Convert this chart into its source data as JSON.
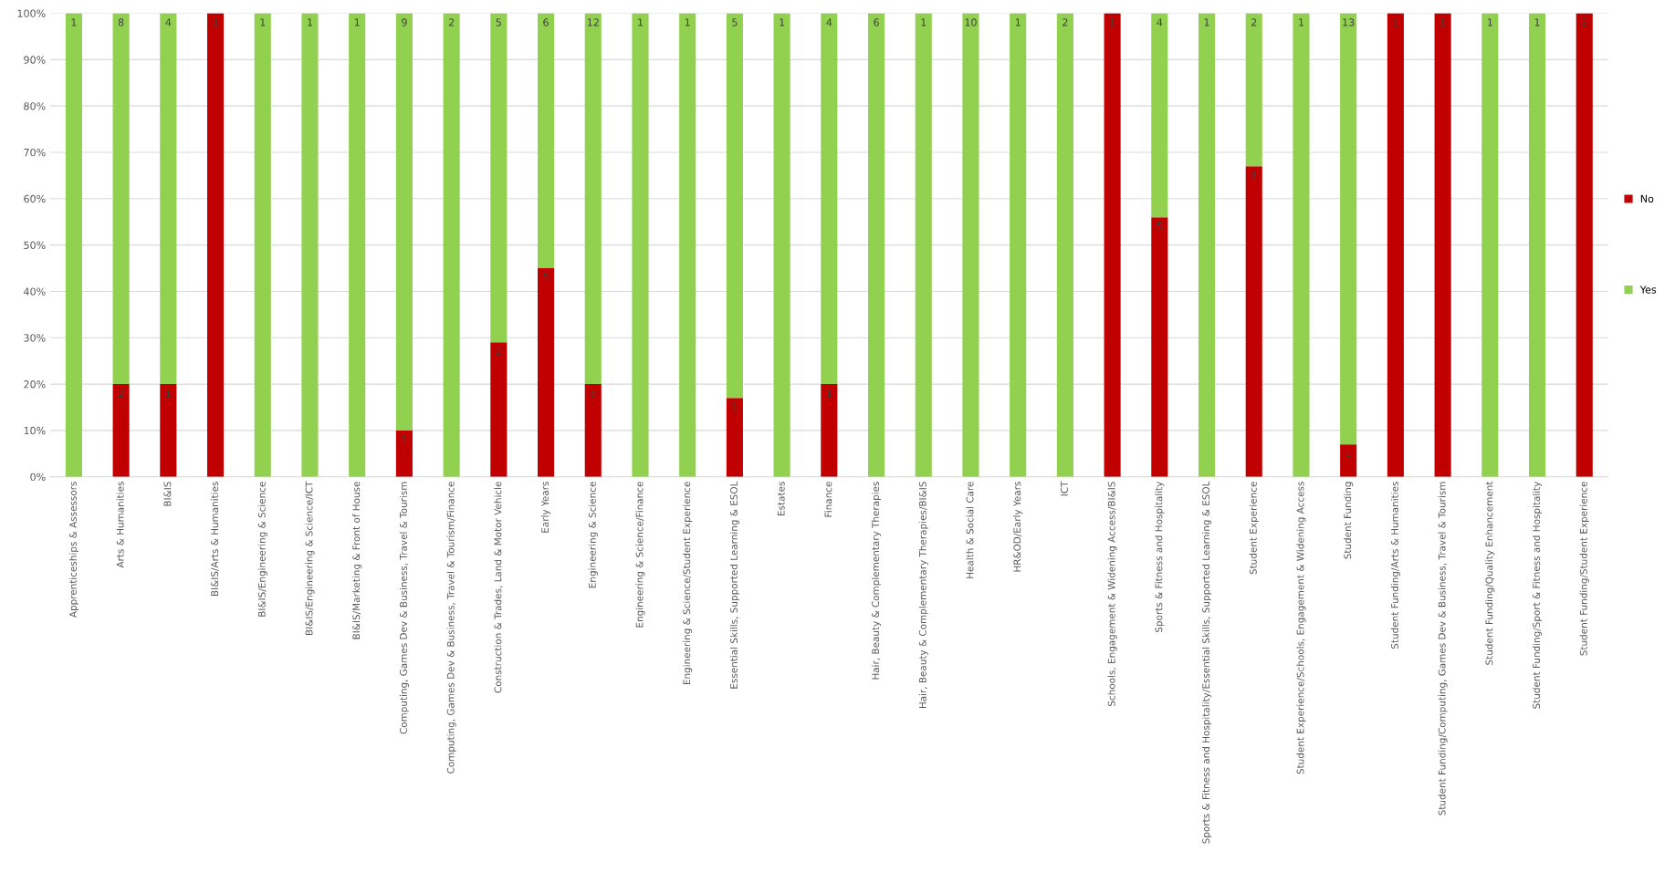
{
  "chart_data": {
    "type": "bar",
    "stacked": true,
    "categories": [
      "Apprenticeships & Assessors",
      "Arts & Humanities",
      "BI&IS",
      "BI&IS/Arts & Humanities",
      "BI&IS/Engineering & Science",
      "BI&IS/Engineering & Science/ICT",
      "BI&IS/Marketing & Front of House",
      "Computing, Games Dev & Business, Travel & Tourism",
      "Computing, Games Dev & Business, Travel & Tourism/Finance",
      "Construction & Trades, Land & Motor Vehicle",
      "Early Years",
      "Engineering & Science",
      "Engineering & Science/Finance",
      "Engineering & Science/Student Experience",
      "Essential Skills, Supported Learning & ESOL",
      "Estates",
      "Finance",
      "Hair, Beauty & Complementary Therapies",
      "Hair, Beauty & Complementary Therapies/BI&IS",
      "Health & Social Care",
      "HR&OD/Early Years",
      "ICT",
      "Schools, Engagement & Widening Access/BI&IS",
      "Sports & Fitness and Hospitality",
      "Sports & Fitness and Hospitality/Essential Skills, Supported Learning & ESOL",
      "Student Experience",
      "Student Experience/Schools, Engagement & Widening Access",
      "Student Funding",
      "Student Funding/Arts & Humanities",
      "Student Funding/Computing, Games Dev & Business, Travel & Tourism",
      "Student Funding/Quality Enhancement",
      "Student Funding/Sport & Fitness and Hospitality",
      "Student Funding/Student Experience"
    ],
    "series": [
      {
        "name": "No",
        "color": "#c00000",
        "values": [
          0,
          20,
          20,
          100,
          0,
          0,
          0,
          10,
          0,
          29,
          45,
          20,
          0,
          0,
          17,
          0,
          20,
          0,
          0,
          0,
          0,
          0,
          100,
          56,
          0,
          67,
          0,
          7,
          100,
          100,
          0,
          0,
          100
        ]
      },
      {
        "name": "Yes",
        "color": "#92d050",
        "values": [
          100,
          80,
          80,
          0,
          100,
          100,
          100,
          90,
          100,
          71,
          55,
          80,
          100,
          100,
          83,
          100,
          80,
          100,
          100,
          100,
          100,
          100,
          0,
          44,
          100,
          33,
          100,
          93,
          0,
          0,
          100,
          100,
          0
        ]
      }
    ],
    "ylim": [
      0,
      100
    ],
    "yticks": [
      {
        "value": 0,
        "label": "0%"
      },
      {
        "value": 10,
        "label": "10%"
      },
      {
        "value": 20,
        "label": "20%"
      },
      {
        "value": 30,
        "label": "30%"
      },
      {
        "value": 40,
        "label": "40%"
      },
      {
        "value": 50,
        "label": "50%"
      },
      {
        "value": 60,
        "label": "60%"
      },
      {
        "value": 70,
        "label": "70%"
      },
      {
        "value": 80,
        "label": "80%"
      },
      {
        "value": 90,
        "label": "90%"
      },
      {
        "value": 100,
        "label": "100%"
      }
    ],
    "grid": "y",
    "legend": "right",
    "annotations": [
      {
        "text": "1",
        "x": "Apprenticeships & Assessors",
        "y": 100
      },
      {
        "text": "2",
        "x": "Arts & Humanities",
        "y": 20
      },
      {
        "text": "8",
        "x": "Arts & Humanities",
        "y": 100
      },
      {
        "text": "1",
        "x": "BI&IS",
        "y": 20
      },
      {
        "text": "4",
        "x": "BI&IS",
        "y": 100
      },
      {
        "text": "1",
        "x": "BI&IS/Arts & Humanities",
        "y": 100
      },
      {
        "text": "1",
        "x": "BI&IS/Engineering & Science",
        "y": 100
      },
      {
        "text": "1",
        "x": "BI&IS/Engineering & Science/ICT",
        "y": 100
      },
      {
        "text": "1",
        "x": "BI&IS/Marketing & Front of House",
        "y": 100
      },
      {
        "text": "1",
        "x": "Computing, Games Dev & Business, Travel & Tourism",
        "y": 10
      },
      {
        "text": "9",
        "x": "Computing, Games Dev & Business, Travel & Tourism",
        "y": 100
      },
      {
        "text": "2",
        "x": "Computing, Games Dev & Business, Travel & Tourism/Finance",
        "y": 100
      },
      {
        "text": "2",
        "x": "Construction & Trades, Land & Motor Vehicle",
        "y": 29
      },
      {
        "text": "5",
        "x": "Construction & Trades, Land & Motor Vehicle",
        "y": 100
      },
      {
        "text": "5",
        "x": "Early Years",
        "y": 45
      },
      {
        "text": "6",
        "x": "Early Years",
        "y": 100
      },
      {
        "text": "3",
        "x": "Engineering & Science",
        "y": 20
      },
      {
        "text": "12",
        "x": "Engineering & Science",
        "y": 100
      },
      {
        "text": "1",
        "x": "Engineering & Science/Finance",
        "y": 100
      },
      {
        "text": "1",
        "x": "Engineering & Science/Student Experience",
        "y": 100
      },
      {
        "text": "1",
        "x": "Essential Skills, Supported Learning & ESOL",
        "y": 17
      },
      {
        "text": "5",
        "x": "Essential Skills, Supported Learning & ESOL",
        "y": 100
      },
      {
        "text": "1",
        "x": "Estates",
        "y": 100
      },
      {
        "text": "1",
        "x": "Finance",
        "y": 20
      },
      {
        "text": "4",
        "x": "Finance",
        "y": 100
      },
      {
        "text": "6",
        "x": "Hair, Beauty & Complementary Therapies",
        "y": 100
      },
      {
        "text": "1",
        "x": "Hair, Beauty & Complementary Therapies/BI&IS",
        "y": 100
      },
      {
        "text": "10",
        "x": "Health & Social Care",
        "y": 100
      },
      {
        "text": "1",
        "x": "HR&OD/Early Years",
        "y": 100
      },
      {
        "text": "2",
        "x": "ICT",
        "y": 100
      },
      {
        "text": "1",
        "x": "Schools, Engagement & Widening Access/BI&IS",
        "y": 100
      },
      {
        "text": "5",
        "x": "Sports & Fitness and Hospitality",
        "y": 56
      },
      {
        "text": "4",
        "x": "Sports & Fitness and Hospitality",
        "y": 100
      },
      {
        "text": "1",
        "x": "Sports & Fitness and Hospitality/Essential Skills, Supported Learning & ESOL",
        "y": 100
      },
      {
        "text": "4",
        "x": "Student Experience",
        "y": 67
      },
      {
        "text": "2",
        "x": "Student Experience",
        "y": 100
      },
      {
        "text": "1",
        "x": "Student Experience/Schools, Engagement & Widening Access",
        "y": 100
      },
      {
        "text": "1",
        "x": "Student Funding",
        "y": 7
      },
      {
        "text": "13",
        "x": "Student Funding",
        "y": 100
      },
      {
        "text": "1",
        "x": "Student Funding/Arts & Humanities",
        "y": 100
      },
      {
        "text": "1",
        "x": "Student Funding/Computing, Games Dev & Business, Travel & Tourism",
        "y": 100
      },
      {
        "text": "1",
        "x": "Student Funding/Quality Enhancement",
        "y": 100
      },
      {
        "text": "1",
        "x": "Student Funding/Sport & Fitness and Hospitality",
        "y": 100
      },
      {
        "text": "2",
        "x": "Student Funding/Student Experience",
        "y": 100
      }
    ]
  }
}
